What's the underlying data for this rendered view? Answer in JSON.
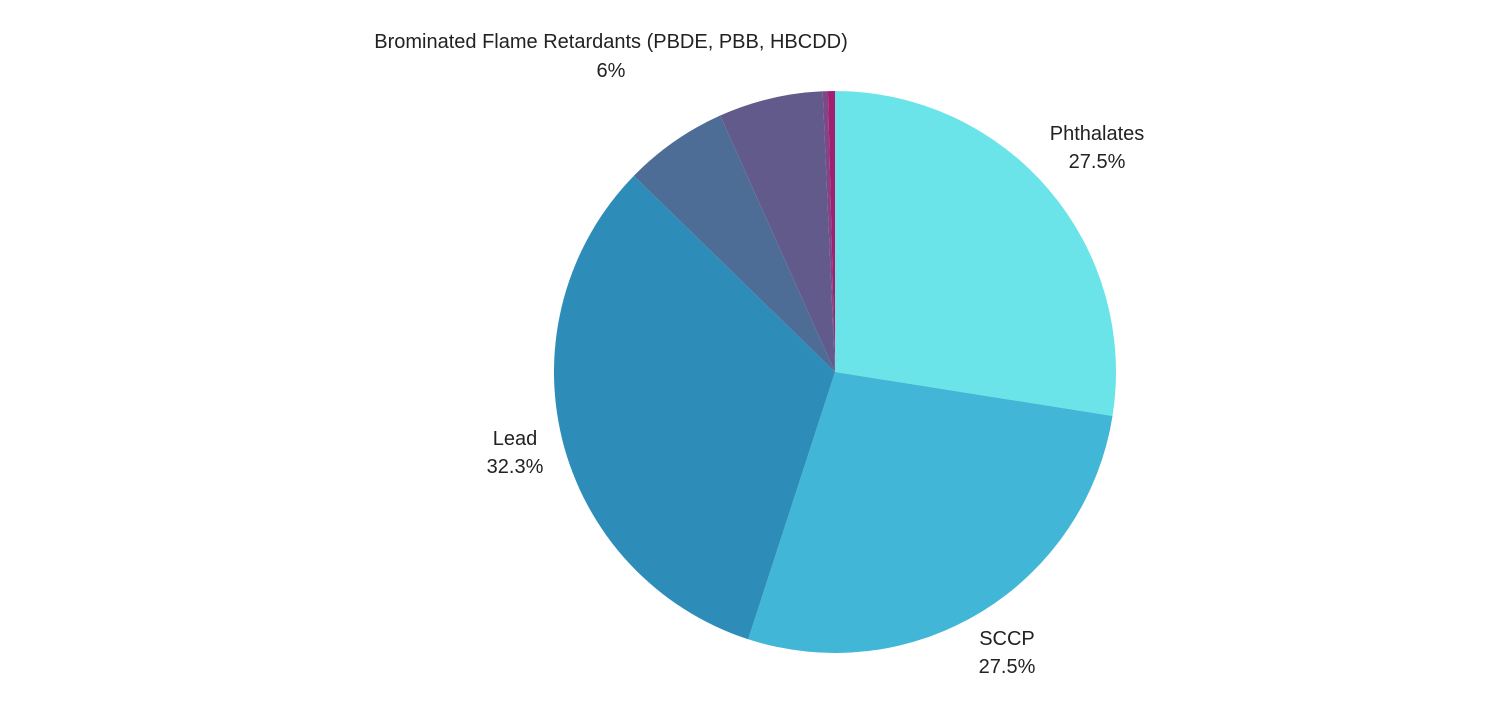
{
  "chart_data": {
    "type": "pie",
    "title": "",
    "start_angle_deg": 0,
    "direction": "clockwise",
    "slices": [
      {
        "name": "Phthalates",
        "value": 27.5,
        "display": "27.5%",
        "color": "#6ae4e8",
        "labeled": true
      },
      {
        "name": "SCCP",
        "value": 27.5,
        "display": "27.5%",
        "color": "#42b6d6",
        "labeled": true
      },
      {
        "name": "Lead",
        "value": 32.3,
        "display": "32.3%",
        "color": "#2d8cb8",
        "labeled": true
      },
      {
        "name": "",
        "value": 6.0,
        "display": "",
        "color": "#4d6d96",
        "labeled": false
      },
      {
        "name": "Brominated Flame Retardants (PBDE, PBB, HBCDD)",
        "value": 6.0,
        "display": "6%",
        "color": "#635a8c",
        "labeled": true
      },
      {
        "name": "",
        "value": 0.3,
        "display": "",
        "color": "#7f4788",
        "labeled": false
      },
      {
        "name": "",
        "value": 0.4,
        "display": "",
        "color": "#a4206f",
        "labeled": false
      }
    ]
  }
}
